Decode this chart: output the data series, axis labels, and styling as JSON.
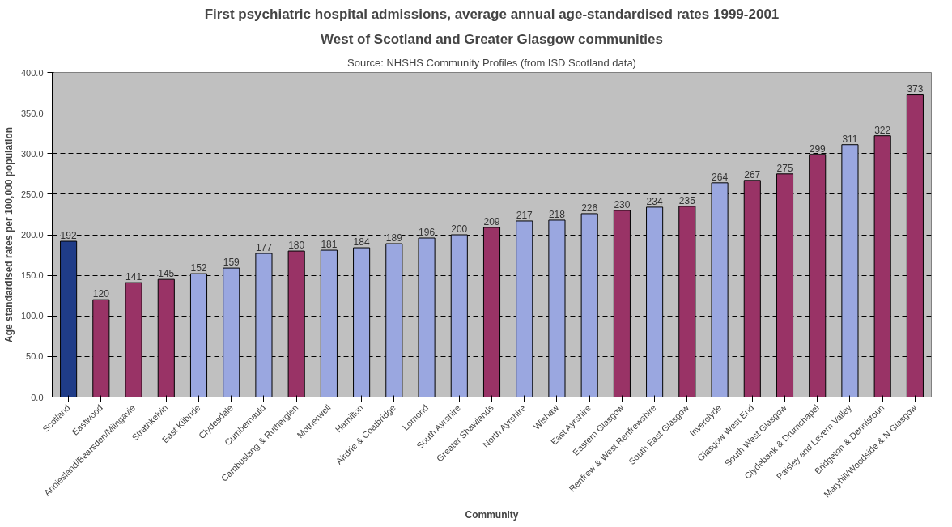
{
  "chart_data": {
    "type": "bar",
    "title": "First psychiatric hospital admissions, average annual age-standardised rates 1999-2001",
    "subtitle": "West of Scotland and Greater Glasgow communities",
    "annotations": [
      "Source: NHSHS Community Profiles (from ISD Scotland data)"
    ],
    "xlabel": "Community",
    "ylabel": "Age standardised rates per 100,000 population",
    "categories": [
      "Scotland",
      "Eastwood",
      "Anniesland/Bearsden/Milngavie",
      "Strathkelvin",
      "East Kilbride",
      "Clydesdale",
      "Cumbernauld",
      "Cambuslang & Rutherglen",
      "Motherwell",
      "Hamilton",
      "Airdrie & Coatbridge",
      "Lomond",
      "South Ayrshire",
      "Greater Shawlands",
      "North Ayrshire",
      "Wishaw",
      "East Ayrshire",
      "Eastern Glasgow",
      "Renfrew & West Renfrewshire",
      "South East Glasgow",
      "Inverclyde",
      "Glasgow West End",
      "South West Glasgow",
      "Clydebank & Drumchapel",
      "Paisley and Levern Valley",
      "Bridgeton & Dennistoun",
      "Maryhill/Woodside & N Glasgow"
    ],
    "values": [
      192,
      120,
      141,
      145,
      152,
      159,
      177,
      180,
      181,
      184,
      189,
      196,
      200,
      209,
      217,
      218,
      226,
      230,
      234,
      235,
      264,
      267,
      275,
      299,
      311,
      322,
      373
    ],
    "colors": [
      "#1f3c88",
      "#993366",
      "#993366",
      "#993366",
      "#9aa7e0",
      "#9aa7e0",
      "#9aa7e0",
      "#993366",
      "#9aa7e0",
      "#9aa7e0",
      "#9aa7e0",
      "#9aa7e0",
      "#9aa7e0",
      "#993366",
      "#9aa7e0",
      "#9aa7e0",
      "#9aa7e0",
      "#993366",
      "#9aa7e0",
      "#993366",
      "#9aa7e0",
      "#993366",
      "#993366",
      "#993366",
      "#9aa7e0",
      "#993366",
      "#993366"
    ],
    "ylim": [
      0,
      400
    ],
    "yticks": [
      {
        "value": 0,
        "label": "0.0"
      },
      {
        "value": 50,
        "label": "50.0"
      },
      {
        "value": 100,
        "label": "100.0"
      },
      {
        "value": 150,
        "label": "150.0"
      },
      {
        "value": 200,
        "label": "200.0"
      },
      {
        "value": 250,
        "label": "250.0"
      },
      {
        "value": 300,
        "label": "300.0"
      },
      {
        "value": 350,
        "label": "350.0"
      },
      {
        "value": 400,
        "label": "400.0"
      }
    ],
    "grid": "y",
    "data_labels": true
  }
}
